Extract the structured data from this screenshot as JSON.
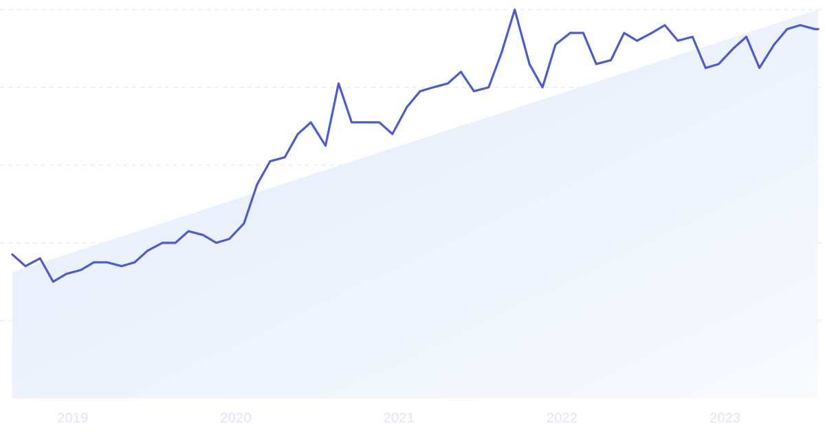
{
  "colors": {
    "line": "#4a5bd4",
    "grid": "#e3e3ea",
    "fill_start": "#e2ebfb",
    "fill_end": "#f8fafe",
    "tick_text": "#dfe4f6"
  },
  "chart_data": {
    "type": "line",
    "title": "",
    "xlabel": "",
    "ylabel": "",
    "grid": "horizontal dashed",
    "legend": "none",
    "x_ticks": [
      "2019",
      "2020",
      "2021",
      "2022",
      "2023"
    ],
    "x_tick_values": [
      2019.0,
      2020.0,
      2021.0,
      2022.0,
      2023.0
    ],
    "xlim": [
      2018.63,
      2023.57
    ],
    "ylim": [
      0,
      100
    ],
    "gridlines_y": [
      20,
      40,
      60,
      80,
      100
    ],
    "x": [
      2018.63,
      2018.71,
      2018.8,
      2018.88,
      2018.96,
      2019.05,
      2019.13,
      2019.21,
      2019.3,
      2019.38,
      2019.46,
      2019.55,
      2019.63,
      2019.71,
      2019.8,
      2019.88,
      2019.96,
      2020.05,
      2020.13,
      2020.21,
      2020.3,
      2020.38,
      2020.46,
      2020.55,
      2020.63,
      2020.71,
      2020.8,
      2020.88,
      2020.96,
      2021.05,
      2021.13,
      2021.21,
      2021.3,
      2021.38,
      2021.46,
      2021.55,
      2021.63,
      2021.71,
      2021.8,
      2021.88,
      2021.96,
      2022.05,
      2022.13,
      2022.21,
      2022.3,
      2022.38,
      2022.46,
      2022.55,
      2022.63,
      2022.71,
      2022.8,
      2022.88,
      2022.96,
      2023.05,
      2023.13,
      2023.21,
      2023.3,
      2023.38,
      2023.46,
      2023.55,
      2023.57
    ],
    "values": [
      37,
      34,
      36,
      30,
      32,
      33,
      35,
      35,
      34,
      35,
      38,
      40,
      40,
      43,
      42,
      40,
      41,
      45,
      55,
      61,
      62,
      68,
      71,
      65,
      81,
      71,
      71,
      71,
      68,
      75,
      79,
      80,
      81,
      84,
      79,
      80,
      89,
      100,
      86,
      80,
      91,
      94,
      94,
      86,
      87,
      94,
      92,
      94,
      96,
      92,
      93,
      85,
      86,
      90,
      93,
      85,
      91,
      95,
      96,
      95,
      95
    ],
    "trend": {
      "start": 32.5,
      "end": 100
    }
  }
}
